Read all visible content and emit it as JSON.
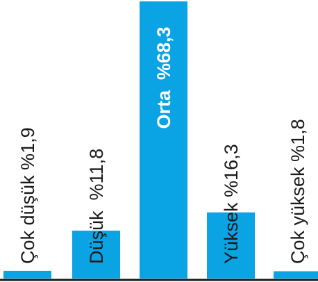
{
  "chart_data": {
    "type": "bar",
    "orientation": "vertical",
    "categories": [
      "Çok düşük",
      "Düşük",
      "Orta",
      "Yüksek",
      "Çok yüksek"
    ],
    "values": [
      1.9,
      11.8,
      68.3,
      16.3,
      1.8
    ],
    "labels": [
      "Çok düşük %1,9",
      "Düşük  %11,8",
      "Orta  %68,3",
      "Yüksek %16,3",
      "Çok yüksek %1,8"
    ],
    "highlight_index": 2,
    "ylim": [
      0,
      68.3
    ],
    "grid": false,
    "legend": "none",
    "title": "",
    "xlabel": "",
    "ylabel": ""
  },
  "colors": {
    "bar": "#0aa3e4",
    "baseline": "#1a1a1a",
    "label_text": "#1a1a1a",
    "highlight_text": "#ffffff"
  }
}
